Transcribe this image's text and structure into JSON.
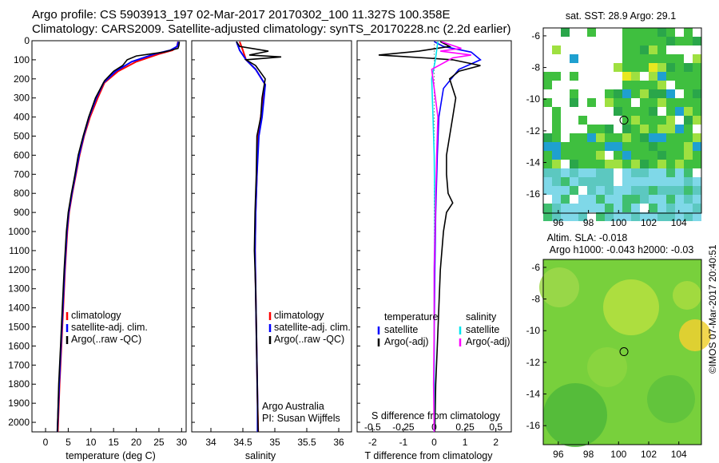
{
  "header": {
    "line1": "Argo profile: CS 5903913_197 02-Mar-2017 20170302_100 11.327S 100.358E",
    "line2": "Climatology: CARS2009. Satellite-adjusted climatology: synTS_20170228.nc (2.2d earlier)"
  },
  "colors": {
    "climatology": "#ff0000",
    "satellite": "#0000ff",
    "argo": "#000000",
    "satellite_salinity": "#00e5ee",
    "argo_adj_salinity": "#ff00ff"
  },
  "chart_data": [
    {
      "type": "line",
      "title": "",
      "xlabel": "temperature (deg C)",
      "ylabel": "",
      "xlim": [
        -3,
        31
      ],
      "ylim": [
        2050,
        0
      ],
      "x_ticks": [
        0,
        5,
        10,
        15,
        20,
        25,
        30
      ],
      "y_ticks": [
        0,
        100,
        200,
        300,
        400,
        500,
        600,
        700,
        800,
        900,
        1000,
        1100,
        1200,
        1300,
        1400,
        1500,
        1600,
        1700,
        1800,
        1900,
        2000
      ],
      "legend": [
        "climatology",
        "satellite-adj. clim.",
        "Argo(..raw -QC)"
      ],
      "legend_position": "lower-middle",
      "series": [
        {
          "name": "climatology",
          "points": [
            [
              29.2,
              5
            ],
            [
              29,
              30
            ],
            [
              28,
              50
            ],
            [
              25,
              70
            ],
            [
              20,
              110
            ],
            [
              16,
              160
            ],
            [
              13,
              220
            ],
            [
              11.5,
              300
            ],
            [
              9.8,
              400
            ],
            [
              8.5,
              500
            ],
            [
              7.5,
              600
            ],
            [
              6.7,
              700
            ],
            [
              5.9,
              800
            ],
            [
              5.2,
              900
            ],
            [
              4.8,
              1000
            ],
            [
              4.3,
              1200
            ],
            [
              3.9,
              1400
            ],
            [
              3.5,
              1600
            ],
            [
              3.1,
              1800
            ],
            [
              2.7,
              2050
            ]
          ]
        },
        {
          "name": "satellite-adj. clim.",
          "points": [
            [
              29.3,
              5
            ],
            [
              29,
              30
            ],
            [
              27.5,
              50
            ],
            [
              24,
              70
            ],
            [
              19,
              110
            ],
            [
              15.5,
              160
            ],
            [
              12.8,
              220
            ],
            [
              11.2,
              300
            ],
            [
              9.6,
              400
            ],
            [
              8.4,
              500
            ],
            [
              7.4,
              600
            ],
            [
              6.6,
              700
            ],
            [
              5.8,
              800
            ],
            [
              5.1,
              900
            ],
            [
              4.7,
              1000
            ],
            [
              4.2,
              1200
            ],
            [
              3.8,
              1400
            ],
            [
              3.4,
              1600
            ],
            [
              3,
              1800
            ],
            [
              2.6,
              2050
            ]
          ]
        },
        {
          "name": "Argo(..raw -QC)",
          "points": [
            [
              29.5,
              5
            ],
            [
              29.4,
              25
            ],
            [
              29.2,
              40
            ],
            [
              26,
              60
            ],
            [
              20,
              80
            ],
            [
              18,
              100
            ],
            [
              17,
              130
            ],
            [
              15,
              160
            ],
            [
              13,
              210
            ],
            [
              11,
              300
            ],
            [
              9.5,
              400
            ],
            [
              8.3,
              500
            ],
            [
              7.2,
              600
            ],
            [
              6.5,
              700
            ],
            [
              5.7,
              800
            ],
            [
              5,
              900
            ],
            [
              4.6,
              1000
            ],
            [
              4.1,
              1200
            ],
            [
              3.7,
              1400
            ],
            [
              3.3,
              1600
            ],
            [
              2.9,
              1800
            ],
            [
              2.6,
              2050
            ]
          ]
        }
      ]
    },
    {
      "type": "line",
      "title": "",
      "xlabel": "salinity",
      "ylabel": "",
      "xlim": [
        33.7,
        36.2
      ],
      "ylim": [
        2050,
        0
      ],
      "x_ticks": [
        34,
        34.5,
        35,
        35.5,
        36
      ],
      "legend": [
        "climatology",
        "satellite-adj. clim.",
        "Argo(..raw -QC)"
      ],
      "legend_position": "lower-right",
      "annotation": [
        "Argo Australia",
        "PI: Susan Wijffels"
      ],
      "series": [
        {
          "name": "climatology",
          "points": [
            [
              34.45,
              5
            ],
            [
              34.5,
              50
            ],
            [
              34.55,
              100
            ],
            [
              34.7,
              150
            ],
            [
              34.85,
              230
            ],
            [
              34.82,
              300
            ],
            [
              34.78,
              400
            ],
            [
              34.74,
              500
            ],
            [
              34.72,
              700
            ],
            [
              34.7,
              900
            ],
            [
              34.69,
              1100
            ],
            [
              34.7,
              1300
            ],
            [
              34.71,
              1500
            ],
            [
              34.72,
              1700
            ],
            [
              34.73,
              1900
            ],
            [
              34.74,
              2050
            ]
          ]
        },
        {
          "name": "satellite-adj. clim.",
          "points": [
            [
              34.4,
              5
            ],
            [
              34.45,
              50
            ],
            [
              34.55,
              100
            ],
            [
              34.7,
              150
            ],
            [
              34.85,
              230
            ],
            [
              34.83,
              300
            ],
            [
              34.8,
              400
            ],
            [
              34.75,
              500
            ],
            [
              34.72,
              700
            ],
            [
              34.7,
              900
            ],
            [
              34.69,
              1100
            ],
            [
              34.7,
              1300
            ],
            [
              34.71,
              1500
            ],
            [
              34.72,
              1700
            ],
            [
              34.73,
              1900
            ],
            [
              34.73,
              2050
            ]
          ]
        },
        {
          "name": "Argo(..raw -QC)",
          "points": [
            [
              34.4,
              5
            ],
            [
              34.45,
              30
            ],
            [
              34.9,
              55
            ],
            [
              34.6,
              75
            ],
            [
              35.1,
              85
            ],
            [
              34.55,
              100
            ],
            [
              34.7,
              130
            ],
            [
              34.85,
              200
            ],
            [
              34.8,
              300
            ],
            [
              34.78,
              400
            ],
            [
              34.72,
              500
            ],
            [
              34.71,
              700
            ],
            [
              34.69,
              900
            ],
            [
              34.68,
              1100
            ],
            [
              34.7,
              1300
            ],
            [
              34.71,
              1500
            ],
            [
              34.72,
              1700
            ],
            [
              34.73,
              1900
            ],
            [
              34.74,
              2050
            ]
          ]
        }
      ]
    },
    {
      "type": "line",
      "title": "",
      "xlabel": "T difference from climatology",
      "xlabel_top": "S difference from climatology",
      "ylabel": "",
      "xlim": [
        -2.5,
        2.5
      ],
      "ylim": [
        2050,
        0
      ],
      "x_ticks": [
        -2,
        -1,
        0,
        1,
        2
      ],
      "x_ticks_S": [
        -0.5,
        -0.25,
        0,
        0.25,
        0.5
      ],
      "s_scale": 4,
      "legend": {
        "temperature_heading": "temperature",
        "salinity_heading": "salinity",
        "temperature": [
          "satellite",
          "Argo(-adj)"
        ],
        "salinity": [
          "satellite",
          "Argo(-adj)"
        ]
      },
      "legend_position": "lower-middle",
      "series": [
        {
          "name": "T satellite",
          "points": [
            [
              0,
              5
            ],
            [
              0.3,
              30
            ],
            [
              1.2,
              60
            ],
            [
              1.5,
              100
            ],
            [
              0.8,
              150
            ],
            [
              0.3,
              250
            ],
            [
              0.15,
              400
            ],
            [
              0.1,
              600
            ],
            [
              0.05,
              900
            ],
            [
              0.02,
              1200
            ],
            [
              0,
              1600
            ],
            [
              0,
              2050
            ]
          ]
        },
        {
          "name": "T Argo(-adj)",
          "points": [
            [
              0.2,
              5
            ],
            [
              0.5,
              30
            ],
            [
              -0.5,
              55
            ],
            [
              -1.8,
              75
            ],
            [
              -0.3,
              90
            ],
            [
              0.6,
              100
            ],
            [
              1.5,
              130
            ],
            [
              0.8,
              160
            ],
            [
              0.5,
              200
            ],
            [
              0.7,
              300
            ],
            [
              0.6,
              400
            ],
            [
              0.5,
              500
            ],
            [
              0.4,
              600
            ],
            [
              0.4,
              700
            ],
            [
              0.45,
              800
            ],
            [
              0.6,
              850
            ],
            [
              0.4,
              900
            ],
            [
              0.3,
              1000
            ],
            [
              0.2,
              1200
            ],
            [
              0.15,
              1400
            ],
            [
              0.1,
              1600
            ],
            [
              0.05,
              1800
            ],
            [
              0.02,
              2050
            ]
          ]
        },
        {
          "name": "S satellite",
          "points": [
            [
              0.03,
              5
            ],
            [
              0.02,
              50
            ],
            [
              0.01,
              100
            ],
            [
              -0.02,
              200
            ],
            [
              -0.01,
              400
            ],
            [
              0,
              600
            ],
            [
              0.005,
              900
            ],
            [
              0,
              1200
            ],
            [
              0,
              2050
            ]
          ]
        },
        {
          "name": "S Argo(-adj)",
          "points": [
            [
              0.06,
              5
            ],
            [
              0.22,
              40
            ],
            [
              0.05,
              55
            ],
            [
              0.3,
              75
            ],
            [
              0.15,
              90
            ],
            [
              -0.02,
              150
            ],
            [
              0,
              250
            ],
            [
              0.03,
              400
            ],
            [
              0.02,
              600
            ],
            [
              0.01,
              900
            ],
            [
              0,
              1200
            ],
            [
              0,
              1500
            ],
            [
              -0.005,
              1800
            ],
            [
              0,
              2050
            ]
          ]
        }
      ]
    },
    {
      "type": "heatmap",
      "title": "sat. SST: 28.9 Argo: 29.1",
      "xlim": [
        95,
        105.5
      ],
      "ylim": [
        -17.2,
        -5.5
      ],
      "x_ticks": [
        96,
        98,
        100,
        102,
        104
      ],
      "y_ticks": [
        -6,
        -8,
        -10,
        -12,
        -14,
        -16
      ],
      "marker": {
        "lon": 100.358,
        "lat": -11.327
      }
    },
    {
      "type": "heatmap",
      "title": "Altim. SLA: -0.018",
      "subtitle": "Argo h1000: -0.043 h2000: -0.03",
      "xlim": [
        95,
        105.5
      ],
      "ylim": [
        -17.2,
        -5.5
      ],
      "x_ticks": [
        96,
        98,
        100,
        102,
        104
      ],
      "y_ticks": [
        -6,
        -8,
        -10,
        -12,
        -14,
        -16
      ],
      "marker": {
        "lon": 100.358,
        "lat": -11.327
      }
    }
  ],
  "credit": "©IMOS 07-Mar-2017 20:40:51"
}
